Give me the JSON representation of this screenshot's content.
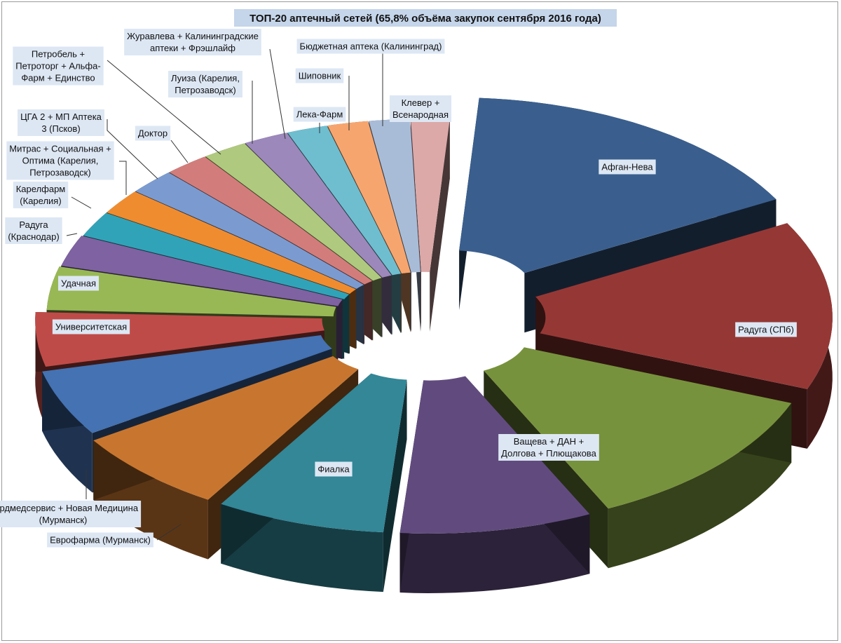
{
  "chart_data": {
    "type": "pie",
    "style": "3d-exploded",
    "title": "ТОП-20 аптечный сетей (65,8% объёма закупок сентября 2016 года)",
    "legend": "none",
    "slices": [
      {
        "label": "Афган-Нева",
        "value": 16.0,
        "color": "#3a5f8e"
      },
      {
        "label": "Радуга (СПб)",
        "value": 14.0,
        "color": "#953835"
      },
      {
        "label": "Ващева + ДАН + Долгова + Плющакова",
        "value": 12.0,
        "color": "#77923c"
      },
      {
        "label": "Фиалка",
        "value": 8.5,
        "color": "#614b7e"
      },
      {
        "label": "Еврофарма (Мурманск)",
        "value": 7.5,
        "color": "#338797"
      },
      {
        "label": "Нордмедсервис + Новая Медицина (Мурманск)",
        "value": 7.0,
        "color": "#c8762f"
      },
      {
        "label": "Университетская",
        "value": 5.5,
        "color": "#4472b2"
      },
      {
        "label": "Удачная",
        "value": 4.5,
        "color": "#bf4b48"
      },
      {
        "label": "Радуга (Краснодар)",
        "value": 3.6,
        "color": "#98b855"
      },
      {
        "label": "Карелфарм (Карелия)",
        "value": 2.6,
        "color": "#7e62a1"
      },
      {
        "label": "Митрас + Социальная + Оптима (Карелия, Петрозаводск)",
        "value": 2.1,
        "color": "#31a3b8"
      },
      {
        "label": "ЦГА 2 + МП Аптека 3 (Псков)",
        "value": 2.1,
        "color": "#f08c30"
      },
      {
        "label": "Доктор",
        "value": 2.1,
        "color": "#7b9bd0"
      },
      {
        "label": "Петробель + Петроторг + Альфа-Фарм + Единство",
        "value": 2.0,
        "color": "#d27d7b"
      },
      {
        "label": "Луиза (Карелия, Петрозаводск)",
        "value": 2.0,
        "color": "#afc97e"
      },
      {
        "label": "Журавлева + Калининградские аптеки + Фрэшлайф",
        "value": 2.0,
        "color": "#9c88bb"
      },
      {
        "label": "Лека-Фарм",
        "value": 1.8,
        "color": "#6ebed0"
      },
      {
        "label": "Шиповник",
        "value": 1.8,
        "color": "#f7a56e"
      },
      {
        "label": "Бюджетная аптека (Калининград)",
        "value": 1.8,
        "color": "#a8bcd8"
      },
      {
        "label": "Клевер + Всенародная",
        "value": 1.7,
        "color": "#dca9a8"
      }
    ]
  }
}
